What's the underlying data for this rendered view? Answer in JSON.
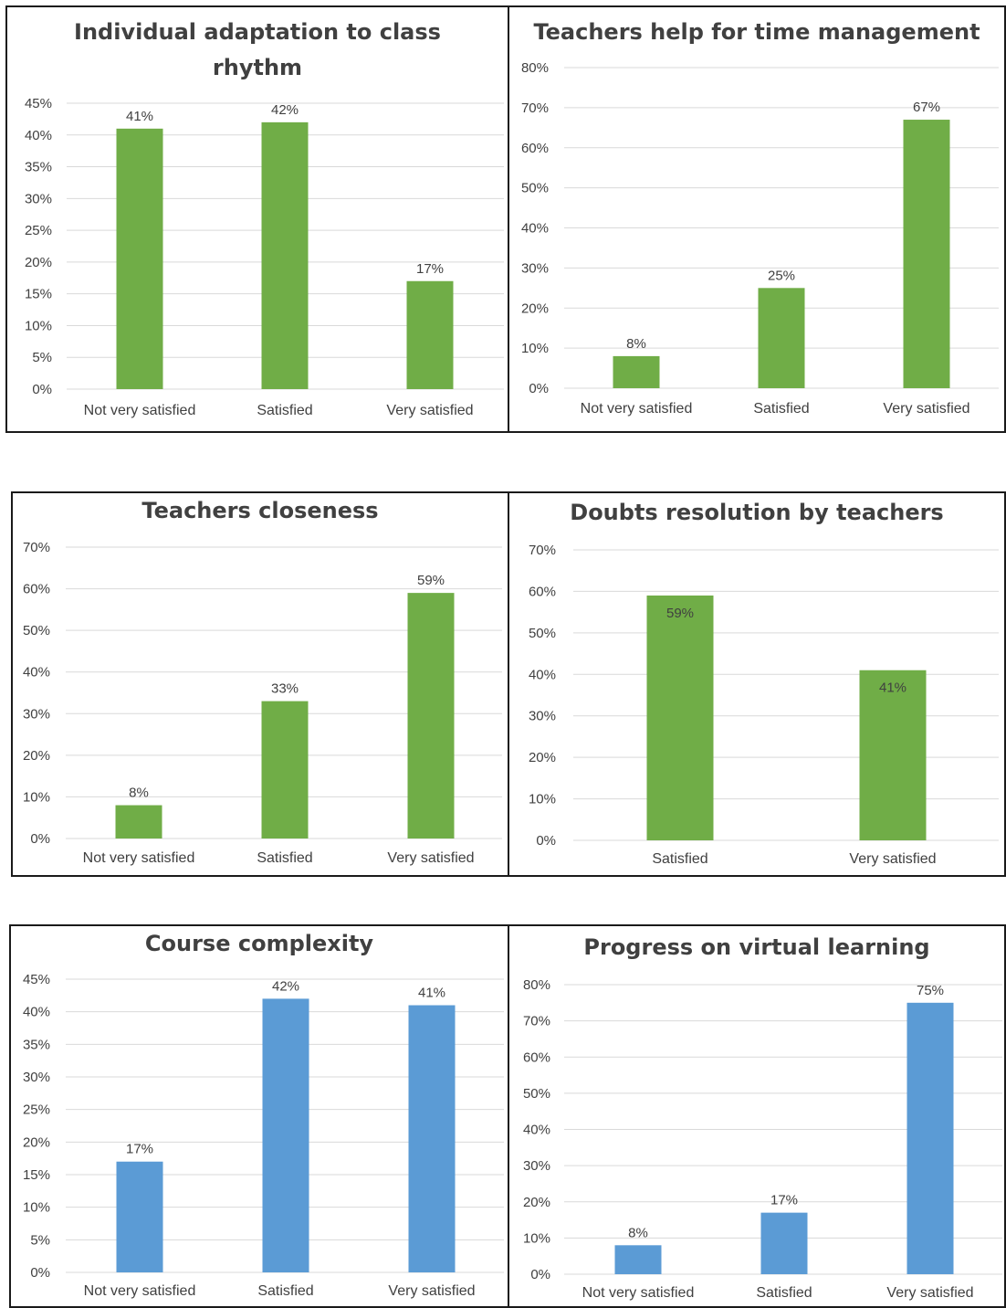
{
  "colors": {
    "green": "#70ad47",
    "blue": "#5b9bd5",
    "grid": "#d9d9d9",
    "text": "#404040"
  },
  "chart_data": [
    {
      "type": "bar",
      "title": "Individual adaptation to class rhythm",
      "title_lines": [
        "Individual adaptation to class",
        "rhythm"
      ],
      "categories": [
        "Not very satisfied",
        "Satisfied",
        "Very satisfied"
      ],
      "values": [
        41,
        42,
        17
      ],
      "data_labels": [
        "41%",
        "42%",
        "17%"
      ],
      "yticks": [
        "0%",
        "5%",
        "10%",
        "15%",
        "20%",
        "25%",
        "30%",
        "35%",
        "40%",
        "45%"
      ],
      "ylim": [
        0,
        45
      ],
      "grid": true,
      "color": "green"
    },
    {
      "type": "bar",
      "title": "Teachers help for time management",
      "title_lines": [
        "Teachers help for time management"
      ],
      "categories": [
        "Not very satisfied",
        "Satisfied",
        "Very satisfied"
      ],
      "values": [
        8,
        25,
        67
      ],
      "data_labels": [
        "8%",
        "25%",
        "67%"
      ],
      "yticks": [
        "0%",
        "10%",
        "20%",
        "30%",
        "40%",
        "50%",
        "60%",
        "70%",
        "80%"
      ],
      "ylim": [
        0,
        80
      ],
      "grid": true,
      "color": "green"
    },
    {
      "type": "bar",
      "title": "Teachers closeness",
      "title_lines": [
        "Teachers closeness"
      ],
      "categories": [
        "Not very satisfied",
        "Satisfied",
        "Very satisfied"
      ],
      "values": [
        8,
        33,
        59
      ],
      "data_labels": [
        "8%",
        "33%",
        "59%"
      ],
      "yticks": [
        "0%",
        "10%",
        "20%",
        "30%",
        "40%",
        "50%",
        "60%",
        "70%"
      ],
      "ylim": [
        0,
        70
      ],
      "grid": true,
      "color": "green"
    },
    {
      "type": "bar",
      "title": "Doubts resolution by teachers",
      "title_lines": [
        "Doubts resolution by teachers"
      ],
      "categories": [
        "Satisfied",
        "Very satisfied"
      ],
      "values": [
        59,
        41
      ],
      "data_labels": [
        "59%",
        "41%"
      ],
      "labels_inside": true,
      "yticks": [
        "0%",
        "10%",
        "20%",
        "30%",
        "40%",
        "50%",
        "60%",
        "70%"
      ],
      "ylim": [
        0,
        70
      ],
      "grid": true,
      "color": "green"
    },
    {
      "type": "bar",
      "title": "Course complexity",
      "title_lines": [
        "Course complexity"
      ],
      "categories": [
        "Not very satisfied",
        "Satisfied",
        "Very satisfied"
      ],
      "values": [
        17,
        42,
        41
      ],
      "data_labels": [
        "17%",
        "42%",
        "41%"
      ],
      "yticks": [
        "0%",
        "5%",
        "10%",
        "15%",
        "20%",
        "25%",
        "30%",
        "35%",
        "40%",
        "45%"
      ],
      "ylim": [
        0,
        45
      ],
      "grid": true,
      "color": "blue"
    },
    {
      "type": "bar",
      "title": "Progress on virtual learning",
      "title_lines": [
        "Progress on virtual learning"
      ],
      "categories": [
        "Not very satisfied",
        "Satisfied",
        "Very satisfied"
      ],
      "values": [
        8,
        17,
        75
      ],
      "data_labels": [
        "8%",
        "17%",
        "75%"
      ],
      "yticks": [
        "0%",
        "10%",
        "20%",
        "30%",
        "40%",
        "50%",
        "60%",
        "70%",
        "80%"
      ],
      "ylim": [
        0,
        80
      ],
      "grid": true,
      "color": "blue"
    }
  ]
}
